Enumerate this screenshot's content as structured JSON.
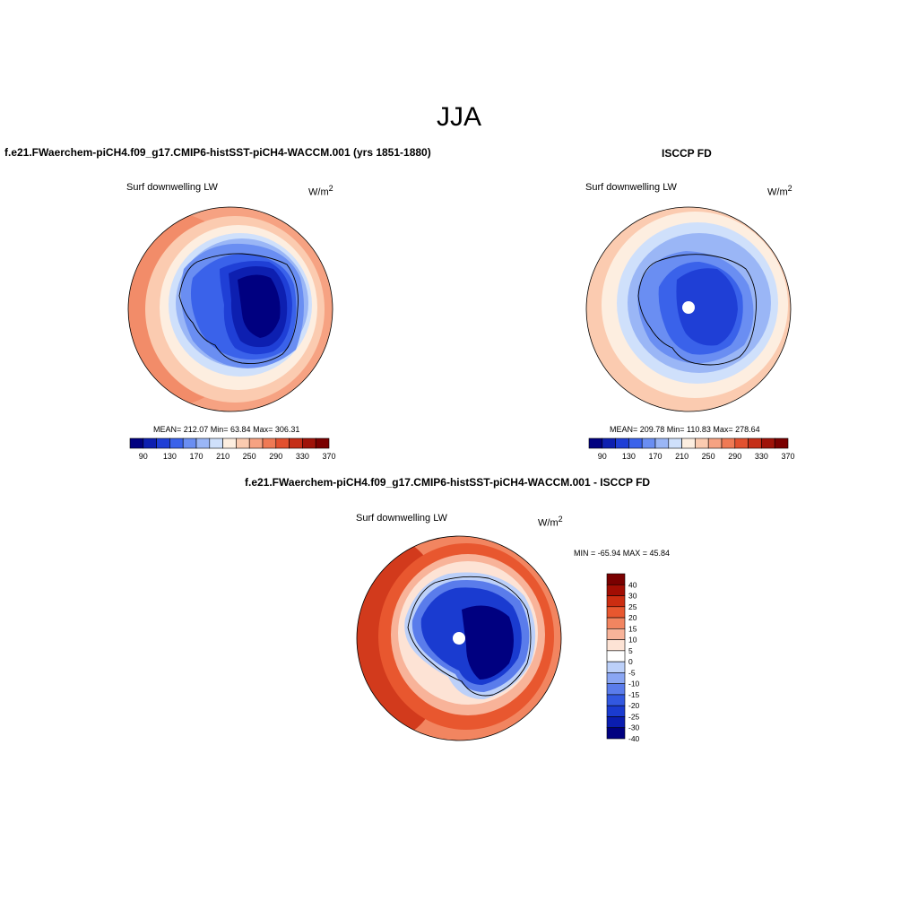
{
  "figure_title": "JJA",
  "colors": {
    "abs_scale": [
      "#000080",
      "#0d1fb0",
      "#1f3fd6",
      "#3a62ea",
      "#6a8ef2",
      "#9ab6f6",
      "#cfe0fb",
      "#fdeee0",
      "#fbcbb0",
      "#f6a282",
      "#ef7a55",
      "#e2512f",
      "#c52e17",
      "#9f1309",
      "#7a0000"
    ],
    "diff_scale": [
      "#000080",
      "#0a1db0",
      "#1a3bd0",
      "#3258e0",
      "#5a7ceb",
      "#8aa6f3",
      "#bcd0f9",
      "#ffffff",
      "#fde3d5",
      "#f8b399",
      "#f28560",
      "#e8572f",
      "#cc2d11",
      "#a20d03",
      "#7a0000"
    ]
  },
  "chart_data": [
    {
      "type": "heatmap",
      "panel": "model",
      "header": "f.e21.FWaerchem-piCH4.f09_g17.CMIP6-histSST-piCH4-WACCM.001 (yrs 1851-1880)",
      "subtitle_left": "Surf downwelling LW",
      "units": "W/m",
      "units_sup": "2",
      "projection": "south-polar stereographic",
      "stats": {
        "mean": 212.07,
        "min": 63.84,
        "max": 306.31
      },
      "stats_text": "MEAN= 212.07  Min=  63.84  Max= 306.31",
      "colorbar_labels": [
        "90",
        "130",
        "170",
        "210",
        "250",
        "290",
        "330",
        "370"
      ]
    },
    {
      "type": "heatmap",
      "panel": "observations",
      "header": "ISCCP FD",
      "subtitle_left": "Surf downwelling LW",
      "units": "W/m",
      "units_sup": "2",
      "projection": "south-polar stereographic",
      "stats": {
        "mean": 209.78,
        "min": 110.83,
        "max": 278.64
      },
      "stats_text": "MEAN= 209.78  Min= 110.83  Max= 278.64",
      "colorbar_labels": [
        "90",
        "130",
        "170",
        "210",
        "250",
        "290",
        "330",
        "370"
      ]
    },
    {
      "type": "heatmap",
      "panel": "difference",
      "header": "f.e21.FWaerchem-piCH4.f09_g17.CMIP6-histSST-piCH4-WACCM.001 - ISCCP FD",
      "subtitle_left": "Surf downwelling LW",
      "units": "W/m",
      "units_sup": "2",
      "projection": "south-polar stereographic",
      "stats": {
        "min": -65.94,
        "max": 45.84
      },
      "stats_text": "MIN = -65.94 MAX =  45.84",
      "colorbar_labels": [
        "40",
        "30",
        "25",
        "20",
        "15",
        "10",
        "5",
        "0",
        "-5",
        "-10",
        "-15",
        "-20",
        "-25",
        "-30",
        "-40"
      ]
    }
  ]
}
